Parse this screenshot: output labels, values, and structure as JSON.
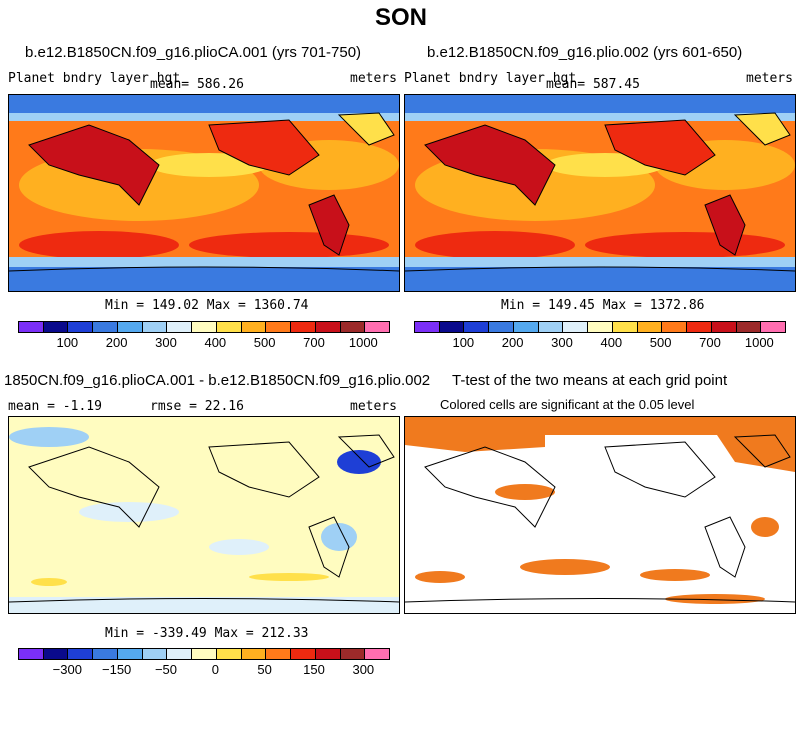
{
  "title": "SON",
  "panels": {
    "tl": {
      "title": "b.e12.B1850CN.f09_g16.plioCA.001 (yrs 701-750)",
      "varname": "Planet bndry layer hgt",
      "mean": "mean= 586.26",
      "units": "meters",
      "minmax": "Min = 149.02 Max = 1360.74",
      "levels": [
        100,
        200,
        300,
        400,
        500,
        700,
        1000
      ]
    },
    "tr": {
      "title": "b.e12.B1850CN.f09_g16.plio.002 (yrs 601-650)",
      "varname": "Planet bndry layer hgt",
      "mean": "mean= 587.45",
      "units": "meters",
      "minmax": "Min = 149.45 Max = 1372.86",
      "levels": [
        100,
        200,
        300,
        400,
        500,
        700,
        1000
      ]
    },
    "bl": {
      "title": "1850CN.f09_g16.plioCA.001 - b.e12.B1850CN.f09_g16.plio.002",
      "mean": "mean =   -1.19",
      "rmse": "rmse =  22.16",
      "units": "meters",
      "minmax": "Min = -339.49 Max = 212.33",
      "levels": [
        -300,
        -150,
        -50,
        0,
        50,
        150,
        300
      ]
    },
    "br": {
      "title": "T-test of the two means at each grid point",
      "subtitle": "Colored cells are significant at the 0.05 level"
    }
  },
  "colors": {
    "abs_scale": [
      "#7b2ff7",
      "#0a0a8c",
      "#1e3fd6",
      "#3a7ae0",
      "#55a9ef",
      "#9fd0f5",
      "#dff0fa",
      "#fffcc0",
      "#ffe04a",
      "#ffb020",
      "#ff7a1a",
      "#ee2a10",
      "#c8101a",
      "#9c2a2a",
      "#ff6eb0"
    ],
    "diff_scale": [
      "#7b2ff7",
      "#0a0a8c",
      "#1e3fd6",
      "#3a7ae0",
      "#55a9ef",
      "#9fd0f5",
      "#dff0fa",
      "#fffcc0",
      "#ffe04a",
      "#ffb020",
      "#ff7a1a",
      "#ee2a10",
      "#c8101a",
      "#9c2a2a",
      "#ff6eb0"
    ],
    "signif": "#f07a1e"
  }
}
